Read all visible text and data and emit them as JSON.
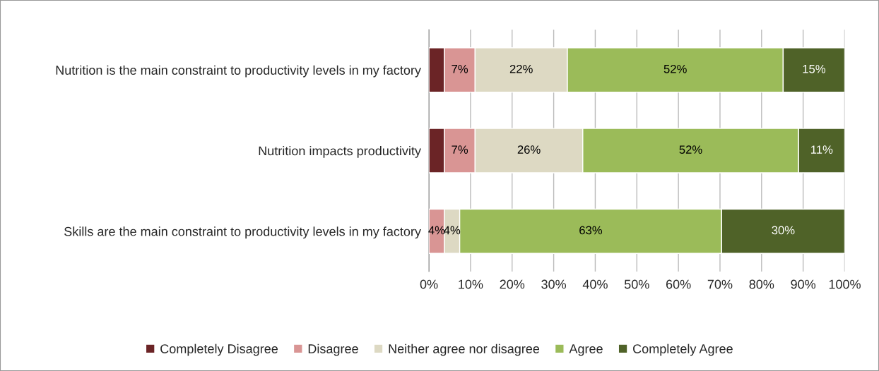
{
  "chart_data": {
    "type": "bar",
    "orientation": "horizontal",
    "stacked": true,
    "categories": [
      "Nutrition is the main constraint to productivity levels in my factory",
      "Nutrition impacts productivity",
      "Skills are the main constraint to productivity levels in my factory"
    ],
    "series": [
      {
        "name": "Completely Disagree",
        "color": "#6b2426",
        "values": [
          3.7,
          3.7,
          0
        ],
        "value_labels": [
          null,
          null,
          null
        ]
      },
      {
        "name": "Disagree",
        "color": "#d99594",
        "values": [
          7.4,
          7.4,
          3.7
        ],
        "value_labels": [
          "7%",
          "7%",
          "4%"
        ]
      },
      {
        "name": "Neither agree nor disagree",
        "color": "#ddd9c3",
        "values": [
          22.2,
          25.9,
          3.7
        ],
        "value_labels": [
          "22%",
          "26%",
          "4%"
        ]
      },
      {
        "name": "Agree",
        "color": "#9bbb59",
        "values": [
          51.9,
          51.9,
          63
        ],
        "value_labels": [
          "52%",
          "52%",
          "63%"
        ]
      },
      {
        "name": "Completely Agree",
        "color": "#4f6228",
        "values": [
          14.8,
          11.1,
          29.6
        ],
        "value_labels": [
          "15%",
          "11%",
          "30%"
        ]
      }
    ],
    "xlim": [
      0,
      100
    ],
    "xticks": [
      {
        "value": 0,
        "label": "0%"
      },
      {
        "value": 10,
        "label": "10%"
      },
      {
        "value": 20,
        "label": "20%"
      },
      {
        "value": 30,
        "label": "30%"
      },
      {
        "value": 40,
        "label": "40%"
      },
      {
        "value": 50,
        "label": "50%"
      },
      {
        "value": 60,
        "label": "60%"
      },
      {
        "value": 70,
        "label": "70%"
      },
      {
        "value": 80,
        "label": "80%"
      },
      {
        "value": 90,
        "label": "90%"
      },
      {
        "value": 100,
        "label": "100%"
      }
    ],
    "grid": "x",
    "legend": "bottom"
  }
}
